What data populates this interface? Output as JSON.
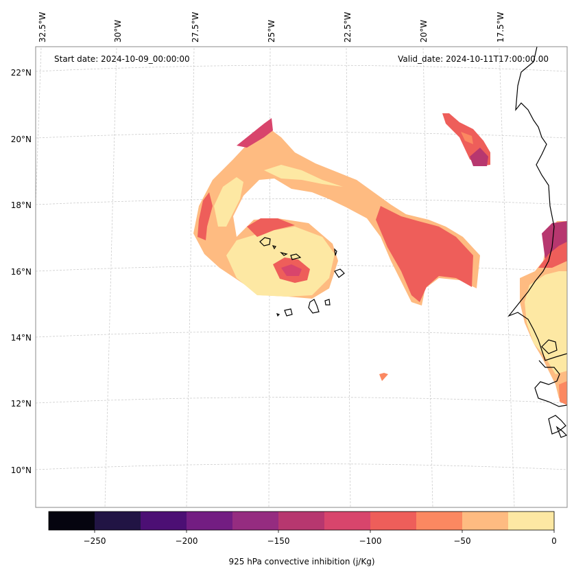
{
  "header": {
    "start_date": "Start date: 2024-10-09_00:00:00",
    "valid_date": "Valid_date: 2024-10-11T17:00:00.00"
  },
  "axes": {
    "lon_labels": [
      "32.5°W",
      "30°W",
      "27.5°W",
      "25°W",
      "22.5°W",
      "20°W",
      "17.5°W"
    ],
    "lat_labels": [
      "22°N",
      "20°N",
      "18°N",
      "16°N",
      "14°N",
      "12°N",
      "10°N"
    ],
    "grid": true
  },
  "colorbar": {
    "label": "925 hPa convective inhibition (j/Kg)",
    "tick_labels": [
      "−250",
      "−200",
      "−150",
      "−100",
      "−50",
      "0"
    ],
    "range": [
      -275,
      0
    ],
    "levels": [
      -275,
      -250,
      -225,
      -200,
      -175,
      -150,
      -125,
      -100,
      -75,
      -50,
      -25,
      0
    ],
    "colors": [
      "#05040f",
      "#211444",
      "#4c0f74",
      "#731d82",
      "#952c80",
      "#b7376f",
      "#d8456c",
      "#ee5e5a",
      "#fb8861",
      "#febb81",
      "#fde8a3"
    ]
  },
  "colors": {
    "coastline": "#000000",
    "gridline": "#cccccc"
  }
}
